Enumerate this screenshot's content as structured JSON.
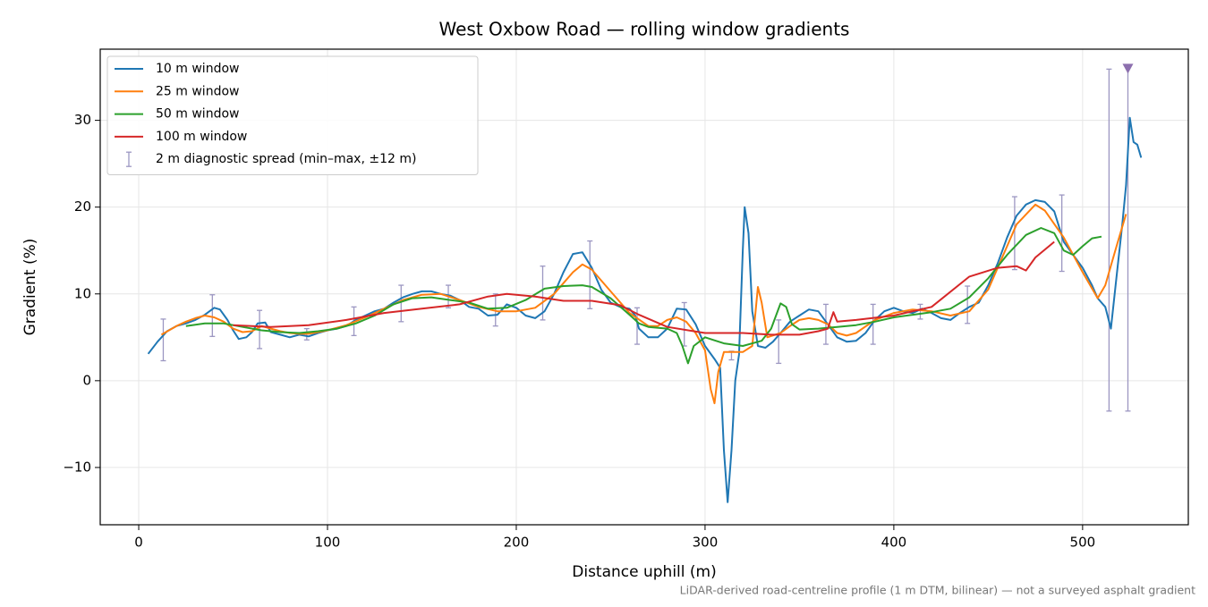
{
  "chart_data": {
    "type": "line",
    "title": "West Oxbow Road — rolling window gradients",
    "xlabel": "Distance uphill (m)",
    "ylabel": "Gradient (%)",
    "footnote": "LiDAR-derived road-centreline profile (1 m DTM, bilinear) — not a surveyed asphalt gradient",
    "xlim": [
      -20.4,
      556
    ],
    "ylim": [
      -16.6,
      38.2
    ],
    "xticks": [
      0,
      100,
      200,
      300,
      400,
      500
    ],
    "yticks": [
      {
        "value": -10,
        "label": "−10"
      },
      0,
      10,
      20,
      30
    ],
    "grid": true,
    "legend": "upper left",
    "series": [
      {
        "name": "10 m window",
        "color": "#1f77b4",
        "x": [
          5,
          10,
          15,
          20,
          25,
          30,
          35,
          40,
          43,
          47,
          50,
          53,
          57,
          60,
          63,
          67,
          70,
          75,
          80,
          85,
          90,
          95,
          100,
          105,
          110,
          115,
          120,
          125,
          130,
          135,
          140,
          145,
          150,
          155,
          160,
          165,
          170,
          175,
          180,
          185,
          190,
          195,
          200,
          205,
          210,
          215,
          220,
          225,
          230,
          235,
          240,
          245,
          250,
          255,
          260,
          263,
          265,
          270,
          275,
          280,
          285,
          290,
          295,
          300,
          305,
          308,
          310,
          312,
          314,
          316,
          318,
          320,
          321,
          323,
          325,
          328,
          332,
          336,
          340,
          345,
          350,
          355,
          360,
          365,
          370,
          375,
          380,
          385,
          390,
          395,
          400,
          405,
          410,
          415,
          420,
          425,
          430,
          435,
          440,
          445,
          450,
          455,
          460,
          465,
          470,
          475,
          480,
          485,
          490,
          495,
          500,
          505,
          508,
          512,
          515,
          518,
          521,
          523,
          525,
          527,
          529,
          531
        ],
        "values": [
          3.1,
          4.5,
          5.7,
          6.3,
          6.6,
          7.0,
          7.6,
          8.4,
          8.2,
          7.0,
          5.8,
          4.8,
          5.0,
          5.6,
          6.6,
          6.7,
          5.6,
          5.3,
          5.0,
          5.3,
          5.1,
          5.5,
          5.8,
          6.0,
          6.3,
          7.0,
          7.5,
          8.0,
          8.3,
          9.0,
          9.6,
          10.0,
          10.3,
          10.3,
          10.0,
          9.8,
          9.3,
          8.5,
          8.3,
          7.5,
          7.6,
          8.8,
          8.4,
          7.5,
          7.2,
          8.0,
          10.0,
          12.5,
          14.6,
          14.8,
          13.0,
          10.5,
          9.0,
          8.5,
          8.3,
          7.5,
          6.0,
          5.0,
          5.0,
          6.0,
          8.3,
          8.2,
          6.5,
          4.0,
          2.5,
          1.5,
          -8,
          -14,
          -8,
          0,
          3,
          15,
          20,
          17,
          8,
          4,
          3.8,
          4.5,
          5.5,
          6.8,
          7.5,
          8.2,
          8.0,
          6.5,
          5.0,
          4.5,
          4.6,
          5.5,
          7.0,
          8.0,
          8.4,
          8.0,
          7.8,
          8.3,
          7.8,
          7.2,
          7.0,
          7.8,
          8.5,
          9.0,
          11.0,
          13.5,
          16.5,
          19.0,
          20.3,
          20.8,
          20.6,
          19.5,
          16.0,
          14.5,
          13.0,
          11.0,
          9.5,
          8.5,
          6.0,
          12,
          18,
          22.5,
          30.3,
          27.5,
          27.2,
          25.7
        ]
      },
      {
        "name": "25 m window",
        "color": "#ff7f0e",
        "x": [
          12,
          20,
          25,
          30,
          35,
          40,
          45,
          50,
          55,
          60,
          65,
          70,
          75,
          80,
          85,
          90,
          95,
          100,
          110,
          120,
          130,
          140,
          150,
          160,
          170,
          180,
          190,
          200,
          210,
          220,
          230,
          235,
          240,
          250,
          260,
          270,
          275,
          280,
          285,
          290,
          295,
          300,
          303,
          305,
          307,
          310,
          315,
          320,
          325,
          328,
          330,
          333,
          340,
          345,
          350,
          355,
          360,
          365,
          370,
          375,
          380,
          390,
          400,
          410,
          420,
          430,
          440,
          450,
          460,
          465,
          475,
          480,
          490,
          500,
          508,
          512,
          518,
          523
        ],
        "values": [
          5.3,
          6.3,
          6.8,
          7.2,
          7.5,
          7.3,
          6.8,
          6.0,
          5.6,
          5.7,
          6.3,
          6.0,
          5.7,
          5.5,
          5.4,
          5.4,
          5.6,
          5.8,
          6.4,
          7.3,
          8.3,
          9.3,
          9.9,
          10.0,
          9.3,
          8.5,
          8.0,
          8.0,
          8.4,
          10.0,
          12.5,
          13.4,
          12.8,
          10.3,
          7.8,
          6.3,
          6.3,
          7.0,
          7.3,
          6.8,
          5.5,
          3.5,
          -1,
          -2.6,
          1,
          3.3,
          3.3,
          3.3,
          4.0,
          10.8,
          9.0,
          5.0,
          5.5,
          6.3,
          7.0,
          7.2,
          7.0,
          6.5,
          5.5,
          5.2,
          5.5,
          7.0,
          7.8,
          8.2,
          8.0,
          7.5,
          8.0,
          10.5,
          15.5,
          18,
          20.3,
          19.6,
          16.5,
          12.5,
          9.5,
          11,
          15.5,
          19.2
        ]
      },
      {
        "name": "50 m window",
        "color": "#2ca02c",
        "x": [
          25,
          35,
          45,
          55,
          65,
          75,
          85,
          95,
          105,
          115,
          125,
          135,
          145,
          155,
          165,
          175,
          185,
          195,
          205,
          215,
          225,
          235,
          240,
          250,
          260,
          265,
          270,
          280,
          285,
          288,
          291,
          294,
          300,
          310,
          320,
          330,
          335,
          340,
          343,
          346,
          350,
          360,
          370,
          380,
          390,
          400,
          410,
          420,
          430,
          440,
          450,
          460,
          470,
          478,
          485,
          490,
          495,
          500,
          505,
          510
        ],
        "values": [
          6.3,
          6.6,
          6.6,
          6.2,
          5.8,
          5.6,
          5.5,
          5.7,
          6.0,
          6.6,
          7.5,
          8.8,
          9.5,
          9.6,
          9.3,
          9.0,
          8.3,
          8.4,
          9.3,
          10.6,
          10.9,
          11.0,
          10.8,
          9.5,
          7.6,
          6.6,
          6.2,
          6.0,
          5.5,
          4.0,
          2.0,
          4.0,
          5.0,
          4.3,
          4.0,
          4.6,
          6.0,
          8.9,
          8.5,
          6.5,
          5.9,
          6.0,
          6.2,
          6.4,
          6.8,
          7.3,
          7.6,
          7.9,
          8.3,
          9.6,
          11.8,
          14.5,
          16.8,
          17.6,
          17.0,
          15.0,
          14.5,
          15.5,
          16.4,
          16.6
        ]
      },
      {
        "name": "100 m window",
        "color": "#d62728",
        "x": [
          50,
          70,
          90,
          110,
          130,
          150,
          170,
          185,
          195,
          210,
          225,
          240,
          255,
          265,
          280,
          300,
          320,
          335,
          350,
          360,
          365,
          368,
          370,
          380,
          400,
          420,
          440,
          455,
          465,
          470,
          475,
          485
        ],
        "values": [
          6.4,
          6.2,
          6.4,
          7.0,
          7.8,
          8.3,
          8.8,
          9.7,
          10.0,
          9.7,
          9.2,
          9.2,
          8.7,
          7.6,
          6.2,
          5.5,
          5.5,
          5.3,
          5.3,
          5.7,
          6.0,
          7.9,
          6.8,
          7.0,
          7.5,
          8.5,
          12.0,
          13.0,
          13.2,
          12.7,
          14.2,
          16.0
        ]
      }
    ],
    "errorbars": {
      "name": "2 m diagnostic spread (min–max, ±12 m)",
      "color": "#9c97c2",
      "x": [
        13,
        39,
        64,
        89,
        114,
        139,
        164,
        189,
        214,
        239,
        264,
        289,
        314,
        339,
        364,
        389,
        414,
        439,
        464,
        489,
        514,
        524
      ],
      "low": [
        2.3,
        5.1,
        3.7,
        4.7,
        5.2,
        6.8,
        8.4,
        6.3,
        7.0,
        8.3,
        4.2,
        4.0,
        2.4,
        2.0,
        4.2,
        4.2,
        7.1,
        6.6,
        12.8,
        12.6,
        -3.5,
        -3.5
      ],
      "high": [
        7.1,
        9.9,
        8.1,
        6.0,
        8.5,
        11.0,
        11.0,
        10.0,
        13.2,
        16.1,
        8.4,
        9.0,
        3.4,
        7.0,
        8.8,
        8.8,
        8.8,
        10.9,
        21.2,
        21.4,
        35.9,
        36.0
      ]
    },
    "markers": {
      "color": "#8c6fae",
      "x": [
        524
      ],
      "y": [
        36.0
      ]
    }
  }
}
